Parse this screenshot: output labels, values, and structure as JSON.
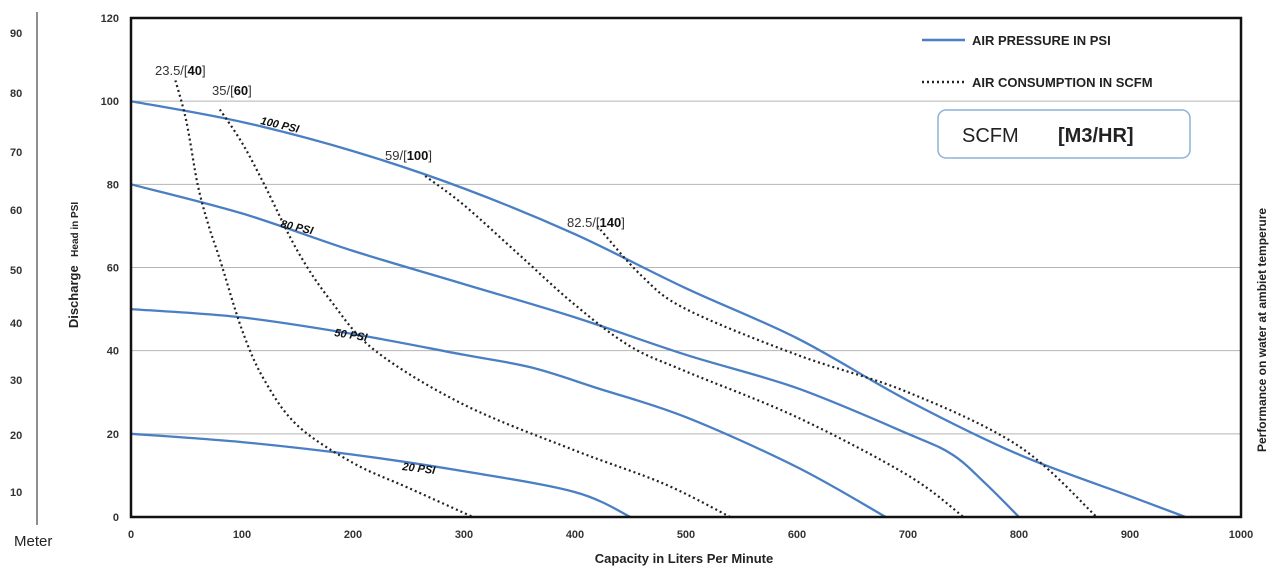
{
  "chart_data": {
    "type": "line",
    "xlabel": "Capacity in Liters Per Minute",
    "ylabel": "Discharge",
    "ylabel_sub": "Head in PSI",
    "right_label": "Performance on water at ambiet temperure",
    "meter_label": "Meter",
    "xlim": [
      0,
      1000
    ],
    "ylim": [
      0,
      120
    ],
    "x_ticks": [
      "0",
      "100",
      "200",
      "300",
      "400",
      "500",
      "600",
      "700",
      "800",
      "900",
      "1000"
    ],
    "y_ticks": [
      "0",
      "20",
      "40",
      "60",
      "80",
      "100",
      "120"
    ],
    "meter_ticks": [
      "10",
      "20",
      "30",
      "40",
      "50",
      "60",
      "70",
      "80",
      "90"
    ],
    "grid": true,
    "legend": [
      {
        "name": "AIR PRESSURE IN PSI",
        "style": "solid",
        "color": "#4a7fc4"
      },
      {
        "name": "AIR CONSUMPTION IN SCFM",
        "style": "dotted",
        "color": "#222222"
      }
    ],
    "unit_box": {
      "left": "SCFM",
      "right": "[M3/HR]"
    },
    "pressure_series": [
      {
        "name": "100 PSI",
        "points": [
          [
            0,
            100
          ],
          [
            100,
            95
          ],
          [
            200,
            88
          ],
          [
            300,
            79
          ],
          [
            400,
            68
          ],
          [
            500,
            55
          ],
          [
            600,
            43
          ],
          [
            700,
            28
          ],
          [
            800,
            15
          ],
          [
            900,
            5
          ],
          [
            950,
            0
          ]
        ]
      },
      {
        "name": "80 PSI",
        "points": [
          [
            0,
            80
          ],
          [
            100,
            73
          ],
          [
            200,
            64
          ],
          [
            300,
            56
          ],
          [
            400,
            48
          ],
          [
            500,
            39
          ],
          [
            600,
            31
          ],
          [
            700,
            20
          ],
          [
            740,
            15
          ],
          [
            770,
            8
          ],
          [
            800,
            0
          ]
        ]
      },
      {
        "name": "50 PSI",
        "points": [
          [
            0,
            50
          ],
          [
            100,
            48
          ],
          [
            200,
            44
          ],
          [
            300,
            39
          ],
          [
            360,
            36
          ],
          [
            420,
            31
          ],
          [
            500,
            24
          ],
          [
            600,
            12
          ],
          [
            680,
            0
          ]
        ]
      },
      {
        "name": "20 PSI",
        "points": [
          [
            0,
            20
          ],
          [
            100,
            18
          ],
          [
            200,
            15
          ],
          [
            300,
            11
          ],
          [
            400,
            6
          ],
          [
            450,
            0
          ]
        ]
      }
    ],
    "consumption_series": [
      {
        "label_plain": "23.5/[",
        "label_bold": "40",
        "label_end": "]",
        "points": [
          [
            40,
            105
          ],
          [
            50,
            95
          ],
          [
            60,
            80
          ],
          [
            70,
            70
          ],
          [
            80,
            62
          ],
          [
            100,
            45
          ],
          [
            120,
            33
          ],
          [
            150,
            22
          ],
          [
            200,
            13
          ],
          [
            250,
            7
          ],
          [
            308,
            0
          ]
        ]
      },
      {
        "label_plain": "35/[",
        "label_bold": "60",
        "label_end": "]",
        "points": [
          [
            80,
            98
          ],
          [
            100,
            90
          ],
          [
            120,
            80
          ],
          [
            150,
            64
          ],
          [
            180,
            52
          ],
          [
            220,
            40
          ],
          [
            300,
            27
          ],
          [
            400,
            16
          ],
          [
            480,
            8
          ],
          [
            540,
            0
          ]
        ]
      },
      {
        "label_plain": "59/[",
        "label_bold": "100",
        "label_end": "]",
        "points": [
          [
            265,
            82
          ],
          [
            300,
            75
          ],
          [
            350,
            63
          ],
          [
            400,
            51
          ],
          [
            450,
            41
          ],
          [
            500,
            35
          ],
          [
            600,
            24
          ],
          [
            700,
            10
          ],
          [
            750,
            0
          ]
        ]
      },
      {
        "label_plain": "82.5/[",
        "label_bold": "140",
        "label_end": "]",
        "points": [
          [
            420,
            70
          ],
          [
            460,
            58
          ],
          [
            500,
            50
          ],
          [
            600,
            39
          ],
          [
            700,
            30
          ],
          [
            800,
            17
          ],
          [
            870,
            0
          ]
        ]
      }
    ]
  }
}
